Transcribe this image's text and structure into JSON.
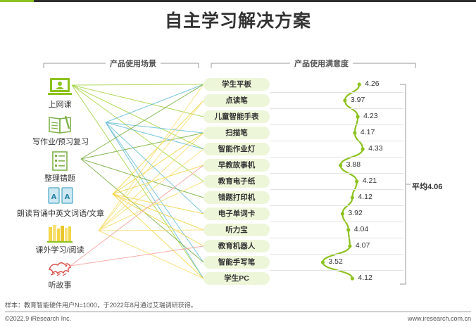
{
  "title": "自主学习解决方案",
  "headers": {
    "left": "产品使用场景",
    "right": "产品使用满意度"
  },
  "scenarios": [
    {
      "label": "上网课",
      "icon": "online-class-icon"
    },
    {
      "label": "写作业/预习复习",
      "icon": "homework-icon"
    },
    {
      "label": "整理错题",
      "icon": "checklist-icon"
    },
    {
      "label": "朗读背诵中英文词语/文章",
      "icon": "reading-cards-icon"
    },
    {
      "label": "课外学习/阅读",
      "icon": "bookshelf-icon"
    },
    {
      "label": "听故事",
      "icon": "dragon-icon"
    }
  ],
  "products": [
    "学生平板",
    "点读笔",
    "儿童智能手表",
    "扫描笔",
    "智能作业灯",
    "早教故事机",
    "教育电子纸",
    "错题打印机",
    "电子单词卡",
    "听力宝",
    "教育机器人",
    "智能手写笔",
    "学生PC"
  ],
  "score_labels": [
    "4.26",
    "3.97",
    "4.23",
    "4.17",
    "4.33",
    "3.88",
    "4.21",
    "4.12",
    "3.92",
    "4.04",
    "4.07",
    "3.52",
    "4.12"
  ],
  "average_label": "平均4.06",
  "colors": {
    "accent": "#8dc21f",
    "line_online_class": "#a8d548",
    "line_homework": "#6cc0d6",
    "line_mistakes": "#7fb24a",
    "line_reading": "#f3d64a",
    "line_extracurricular": "#f7e07a",
    "line_stories": "#f2a6a0"
  },
  "chart_data": {
    "type": "line",
    "categories": [
      "学生平板",
      "点读笔",
      "儿童智能手表",
      "扫描笔",
      "智能作业灯",
      "早教故事机",
      "教育电子纸",
      "错题打印机",
      "电子单词卡",
      "听力宝",
      "教育机器人",
      "智能手写笔",
      "学生PC"
    ],
    "series": [
      {
        "values": [
          4.26,
          3.97,
          4.23,
          4.17,
          4.33,
          3.88,
          4.21,
          4.12,
          3.92,
          4.04,
          4.07,
          3.52,
          4.12
        ]
      }
    ],
    "average": 4.06,
    "connections": [
      {
        "scenario": "上网课",
        "products": [
          "学生平板",
          "儿童智能手表",
          "智能作业灯",
          "教育电子纸",
          "学生PC"
        ]
      },
      {
        "scenario": "写作业/预习复习",
        "products": [
          "学生平板",
          "扫描笔",
          "智能作业灯",
          "电子单词卡",
          "智能手写笔",
          "学生PC"
        ]
      },
      {
        "scenario": "整理错题",
        "products": [
          "学生平板",
          "扫描笔",
          "错题打印机",
          "智能手写笔"
        ]
      },
      {
        "scenario": "朗读背诵中英文词语/文章",
        "products": [
          "点读笔",
          "扫描笔",
          "早教故事机",
          "电子单词卡",
          "听力宝",
          "教育机器人",
          "学生PC"
        ]
      },
      {
        "scenario": "课外学习/阅读",
        "products": [
          "学生平板",
          "点读笔",
          "扫描笔",
          "智能作业灯",
          "教育电子纸",
          "听力宝",
          "学生PC"
        ]
      },
      {
        "scenario": "听故事",
        "products": [
          "早教故事机",
          "教育机器人"
        ]
      }
    ]
  },
  "footnote": "样本：教育智能硬件用户N=1000，于2022年8月通过艾瑞调研获得。",
  "footer": {
    "left": "©2022.9 iResearch Inc.",
    "right": "www.iresearch.com.cn"
  }
}
